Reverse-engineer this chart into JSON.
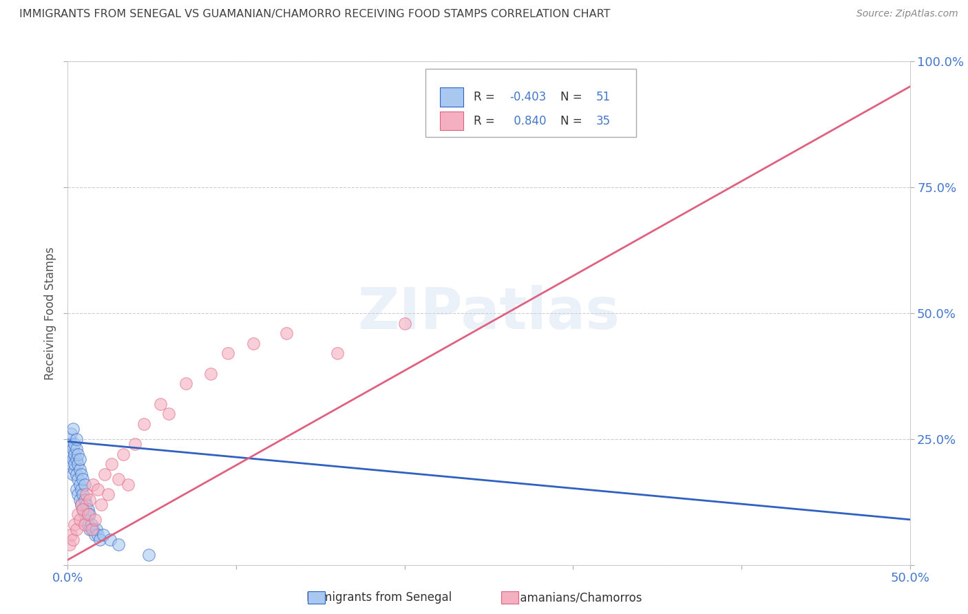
{
  "title": "IMMIGRANTS FROM SENEGAL VS GUAMANIAN/CHAMORRO RECEIVING FOOD STAMPS CORRELATION CHART",
  "source": "Source: ZipAtlas.com",
  "ylabel": "Receiving Food Stamps",
  "watermark": "ZIPatlas",
  "legend_blue_r": "-0.403",
  "legend_blue_n": "51",
  "legend_pink_r": "0.840",
  "legend_pink_n": "35",
  "xlim": [
    0.0,
    0.5
  ],
  "ylim": [
    0.0,
    1.0
  ],
  "xticks": [
    0.0,
    0.1,
    0.2,
    0.3,
    0.4,
    0.5
  ],
  "xtick_labels": [
    "0.0%",
    "",
    "",
    "",
    "",
    "50.0%"
  ],
  "yticks": [
    0.0,
    0.25,
    0.5,
    0.75,
    1.0
  ],
  "ytick_labels": [
    "",
    "25.0%",
    "50.0%",
    "75.0%",
    "100.0%"
  ],
  "blue_color": "#a8c8f0",
  "pink_color": "#f4b0c0",
  "blue_line_color": "#3060c0",
  "pink_line_color": "#e06080",
  "background_color": "#ffffff",
  "grid_color": "#cccccc",
  "title_color": "#404040",
  "tick_label_color": "#4477cc",
  "blue_points_x": [
    0.001,
    0.001,
    0.002,
    0.002,
    0.002,
    0.003,
    0.003,
    0.003,
    0.003,
    0.004,
    0.004,
    0.004,
    0.004,
    0.005,
    0.005,
    0.005,
    0.005,
    0.005,
    0.006,
    0.006,
    0.006,
    0.006,
    0.007,
    0.007,
    0.007,
    0.007,
    0.008,
    0.008,
    0.008,
    0.009,
    0.009,
    0.009,
    0.01,
    0.01,
    0.01,
    0.011,
    0.011,
    0.012,
    0.012,
    0.013,
    0.013,
    0.014,
    0.015,
    0.016,
    0.017,
    0.018,
    0.019,
    0.021,
    0.025,
    0.03,
    0.048
  ],
  "blue_points_y": [
    0.22,
    0.25,
    0.2,
    0.24,
    0.26,
    0.18,
    0.21,
    0.23,
    0.27,
    0.19,
    0.22,
    0.24,
    0.2,
    0.15,
    0.18,
    0.21,
    0.23,
    0.25,
    0.14,
    0.17,
    0.2,
    0.22,
    0.13,
    0.16,
    0.19,
    0.21,
    0.12,
    0.15,
    0.18,
    0.11,
    0.14,
    0.17,
    0.1,
    0.13,
    0.16,
    0.09,
    0.12,
    0.08,
    0.11,
    0.07,
    0.1,
    0.08,
    0.07,
    0.06,
    0.07,
    0.06,
    0.05,
    0.06,
    0.05,
    0.04,
    0.02
  ],
  "pink_points_x": [
    0.001,
    0.002,
    0.003,
    0.004,
    0.005,
    0.006,
    0.007,
    0.008,
    0.009,
    0.01,
    0.011,
    0.012,
    0.013,
    0.014,
    0.015,
    0.016,
    0.018,
    0.02,
    0.022,
    0.024,
    0.026,
    0.03,
    0.033,
    0.036,
    0.04,
    0.045,
    0.055,
    0.06,
    0.07,
    0.085,
    0.095,
    0.11,
    0.13,
    0.16,
    0.2
  ],
  "pink_points_y": [
    0.04,
    0.06,
    0.05,
    0.08,
    0.07,
    0.1,
    0.09,
    0.12,
    0.11,
    0.08,
    0.14,
    0.1,
    0.13,
    0.07,
    0.16,
    0.09,
    0.15,
    0.12,
    0.18,
    0.14,
    0.2,
    0.17,
    0.22,
    0.16,
    0.24,
    0.28,
    0.32,
    0.3,
    0.36,
    0.38,
    0.42,
    0.44,
    0.46,
    0.42,
    0.48
  ],
  "blue_line_x": [
    0.0,
    0.5
  ],
  "blue_line_y": [
    0.245,
    0.09
  ],
  "pink_line_x": [
    0.0,
    0.5
  ],
  "pink_line_y": [
    0.01,
    0.95
  ]
}
